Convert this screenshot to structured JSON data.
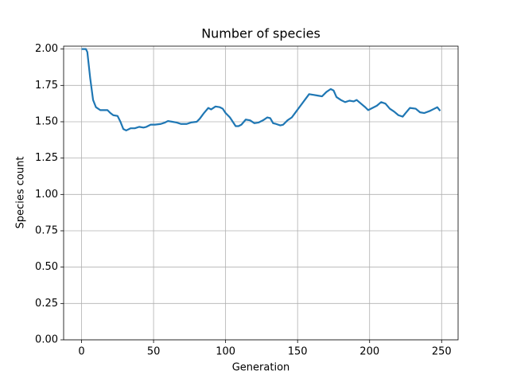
{
  "chart_data": {
    "type": "line",
    "title": "Number of species",
    "x_label": "Generation",
    "y_label": "Species count",
    "x": [
      0,
      3,
      4,
      6,
      8,
      10,
      13,
      18,
      20,
      22,
      25,
      27,
      29,
      31,
      34,
      37,
      40,
      43,
      45,
      48,
      51,
      55,
      58,
      60,
      63,
      66,
      69,
      73,
      76,
      80,
      82,
      85,
      88,
      90,
      93,
      96,
      98,
      100,
      103,
      105,
      107,
      109,
      111,
      114,
      117,
      120,
      123,
      126,
      129,
      131,
      133,
      135,
      138,
      140,
      143,
      146,
      149,
      152,
      155,
      158,
      161,
      164,
      167,
      170,
      173,
      175,
      177,
      180,
      183,
      186,
      189,
      191,
      194,
      197,
      199,
      202,
      205,
      208,
      211,
      214,
      217,
      220,
      223,
      225,
      228,
      232,
      235,
      238,
      242,
      245,
      247,
      249
    ],
    "series": [
      {
        "color": "#1f77b4",
        "values": [
          2.0,
          2.0,
          1.98,
          1.8,
          1.65,
          1.6,
          1.58,
          1.58,
          1.56,
          1.545,
          1.54,
          1.5,
          1.45,
          1.44,
          1.455,
          1.455,
          1.465,
          1.46,
          1.465,
          1.48,
          1.48,
          1.485,
          1.495,
          1.505,
          1.5,
          1.495,
          1.485,
          1.485,
          1.495,
          1.5,
          1.52,
          1.56,
          1.595,
          1.585,
          1.605,
          1.6,
          1.59,
          1.56,
          1.53,
          1.5,
          1.47,
          1.47,
          1.48,
          1.515,
          1.51,
          1.49,
          1.495,
          1.51,
          1.53,
          1.525,
          1.49,
          1.485,
          1.475,
          1.48,
          1.51,
          1.53,
          1.57,
          1.61,
          1.65,
          1.69,
          1.685,
          1.68,
          1.675,
          1.705,
          1.725,
          1.715,
          1.67,
          1.65,
          1.635,
          1.645,
          1.64,
          1.65,
          1.625,
          1.6,
          1.58,
          1.595,
          1.61,
          1.635,
          1.625,
          1.59,
          1.57,
          1.545,
          1.535,
          1.56,
          1.595,
          1.59,
          1.565,
          1.56,
          1.575,
          1.59,
          1.6,
          1.575
        ]
      }
    ],
    "xlim": [
      -12.45,
      261.45
    ],
    "ylim": [
      0,
      2.02
    ],
    "xticks": [
      0,
      50,
      100,
      150,
      200,
      250
    ],
    "yticks": [
      {
        "value": 0,
        "label": "0.00"
      },
      {
        "value": 0.25,
        "label": "0.25"
      },
      {
        "value": 0.5,
        "label": "0.50"
      },
      {
        "value": 0.75,
        "label": "0.75"
      },
      {
        "value": 1,
        "label": "1.00"
      },
      {
        "value": 1.25,
        "label": "1.25"
      },
      {
        "value": 1.5,
        "label": "1.50"
      },
      {
        "value": 1.75,
        "label": "1.75"
      },
      {
        "value": 2,
        "label": "2.00"
      }
    ],
    "grid": true
  }
}
